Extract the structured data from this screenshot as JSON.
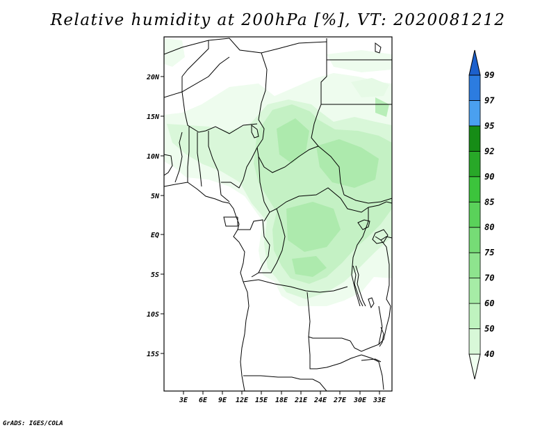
{
  "title": "Relative humidity at 200hPa [%], VT: 2020081212",
  "credit": "GrADS: IGES/COLA",
  "map": {
    "lat_labels": [
      "20N",
      "15N",
      "10N",
      "5N",
      "EQ",
      "5S",
      "10S",
      "15S"
    ],
    "lon_labels": [
      "3E",
      "6E",
      "9E",
      "12E",
      "15E",
      "18E",
      "21E",
      "24E",
      "27E",
      "30E",
      "33E"
    ]
  },
  "colorbar": {
    "levels": [
      "40",
      "50",
      "60",
      "70",
      "75",
      "80",
      "85",
      "90",
      "92",
      "95",
      "97",
      "99"
    ],
    "colors": [
      "#f0fff0",
      "#d8f8d8",
      "#bff3bf",
      "#a6eca6",
      "#8ee48e",
      "#76dc76",
      "#5ad25a",
      "#3cc43c",
      "#28a828",
      "#168c16",
      "#4aa0f0",
      "#2c7ce0",
      "#1c60cc"
    ]
  }
}
